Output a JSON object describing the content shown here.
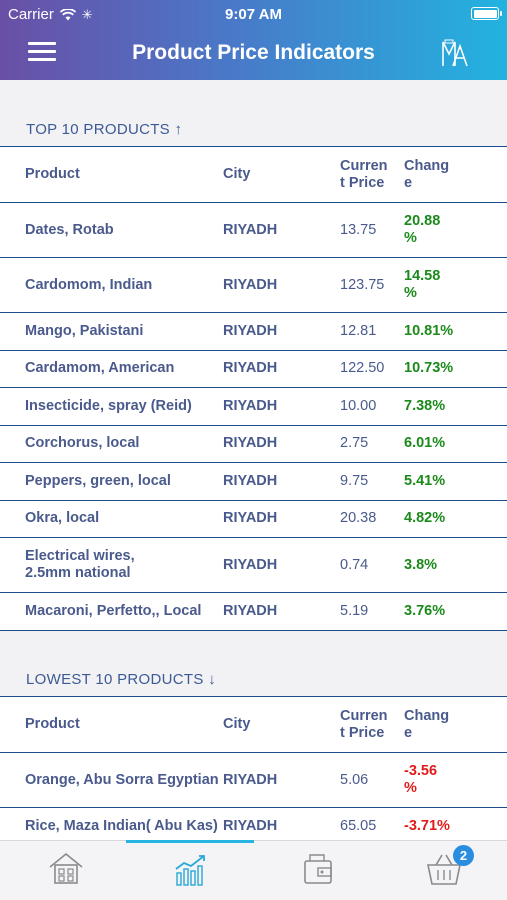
{
  "status": {
    "carrier": "Carrier",
    "time": "9:07 AM",
    "battery_level": 1.0
  },
  "header": {
    "title": "Product Price Indicators",
    "logo_text": "MA"
  },
  "top_section": {
    "title": "TOP 10 PRODUCTS ↑",
    "columns": {
      "product": "Product",
      "city": "City",
      "price_line1": "Curren",
      "price_line2": "t Price",
      "change_line1": "Chang",
      "change_line2": "e"
    },
    "rows": [
      {
        "product": "Dates, Rotab",
        "city": "RIYADH",
        "price": "13.75",
        "change1": "20.88",
        "change2": "%"
      },
      {
        "product": "Cardomom, Indian",
        "city": "RIYADH",
        "price": "123.75",
        "change1": "14.58",
        "change2": "%"
      },
      {
        "product": "Mango, Pakistani",
        "city": "RIYADH",
        "price": "12.81",
        "change1": "10.81%",
        "change2": ""
      },
      {
        "product": "Cardamom, American",
        "city": "RIYADH",
        "price": "122.50",
        "change1": "10.73%",
        "change2": ""
      },
      {
        "product": "Insecticide, spray (Reid)",
        "city": "RIYADH",
        "price": "10.00",
        "change1": "7.38%",
        "change2": ""
      },
      {
        "product": "Corchorus, local",
        "city": "RIYADH",
        "price": "2.75",
        "change1": "6.01%",
        "change2": ""
      },
      {
        "product": "Peppers, green, local",
        "city": "RIYADH",
        "price": "9.75",
        "change1": "5.41%",
        "change2": ""
      },
      {
        "product": "Okra, local",
        "city": "RIYADH",
        "price": "20.38",
        "change1": "4.82%",
        "change2": ""
      },
      {
        "product": "Electrical wires,",
        "product2": "2.5mm national",
        "city": "RIYADH",
        "price": "0.74",
        "change1": "3.8%",
        "change2": ""
      },
      {
        "product": "Macaroni, Perfetto,, Local",
        "city": "RIYADH",
        "price": "5.19",
        "change1": "3.76%",
        "change2": ""
      }
    ]
  },
  "lowest_section": {
    "title": "LOWEST 10 PRODUCTS ↓",
    "columns": {
      "product": "Product",
      "city": "City",
      "price_line1": "Curren",
      "price_line2": "t Price",
      "change_line1": "Chang",
      "change_line2": "e"
    },
    "rows": [
      {
        "product": "Orange, Abu Sorra  Egyptian",
        "city": "RIYADH",
        "price": "5.06",
        "change1": "-3.56",
        "change2": "%"
      },
      {
        "product": "Rice, Maza Indian( Abu Kas)",
        "city": "RIYADH",
        "price": "65.05",
        "change1": "-3.71%",
        "change2": ""
      }
    ]
  },
  "tabbar": {
    "tabs": [
      "home-tab",
      "indicators-tab",
      "wallet-tab",
      "basket-tab"
    ],
    "active_tab": "indicators-tab",
    "basket_badge": "2"
  },
  "colors": {
    "positive": "#1b8a1b",
    "negative": "#e01b1b",
    "accent": "#28b4e0",
    "text": "#4a5a8c"
  }
}
